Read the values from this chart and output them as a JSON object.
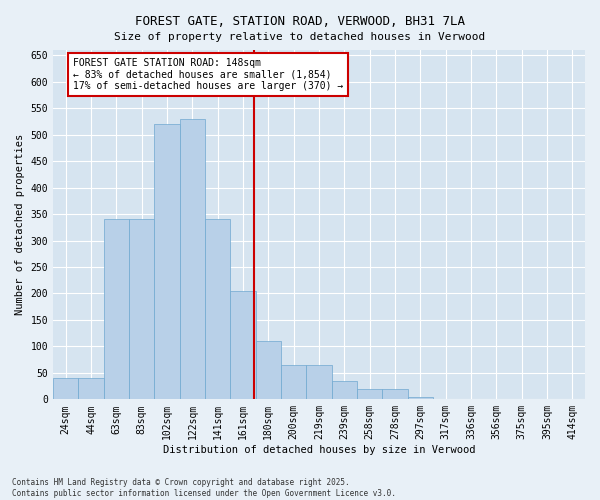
{
  "title": "FOREST GATE, STATION ROAD, VERWOOD, BH31 7LA",
  "subtitle": "Size of property relative to detached houses in Verwood",
  "xlabel": "Distribution of detached houses by size in Verwood",
  "ylabel": "Number of detached properties",
  "categories": [
    "24sqm",
    "44sqm",
    "63sqm",
    "83sqm",
    "102sqm",
    "122sqm",
    "141sqm",
    "161sqm",
    "180sqm",
    "200sqm",
    "219sqm",
    "239sqm",
    "258sqm",
    "278sqm",
    "297sqm",
    "317sqm",
    "336sqm",
    "356sqm",
    "375sqm",
    "395sqm",
    "414sqm"
  ],
  "values": [
    40,
    40,
    340,
    340,
    520,
    530,
    340,
    205,
    110,
    65,
    65,
    35,
    20,
    20,
    5,
    0,
    0,
    0,
    0,
    0,
    0
  ],
  "bar_color": "#b8d0e8",
  "bar_edgecolor": "#6fa8d0",
  "annotation_text_line1": "FOREST GATE STATION ROAD: 148sqm",
  "annotation_text_line2": "← 83% of detached houses are smaller (1,854)",
  "annotation_text_line3": "17% of semi-detached houses are larger (370) →",
  "annotation_box_facecolor": "#ffffff",
  "annotation_box_edgecolor": "#cc0000",
  "vline_color": "#cc0000",
  "vline_x_index": 7.42,
  "ylim": [
    0,
    660
  ],
  "yticks": [
    0,
    50,
    100,
    150,
    200,
    250,
    300,
    350,
    400,
    450,
    500,
    550,
    600,
    650
  ],
  "footer_line1": "Contains HM Land Registry data © Crown copyright and database right 2025.",
  "footer_line2": "Contains public sector information licensed under the Open Government Licence v3.0.",
  "plot_bg_color": "#d6e4f0",
  "fig_bg_color": "#e8f0f7",
  "grid_color": "#ffffff",
  "title_fontsize": 9,
  "subtitle_fontsize": 8,
  "axis_label_fontsize": 7.5,
  "tick_fontsize": 7,
  "annotation_fontsize": 7,
  "footer_fontsize": 5.5
}
